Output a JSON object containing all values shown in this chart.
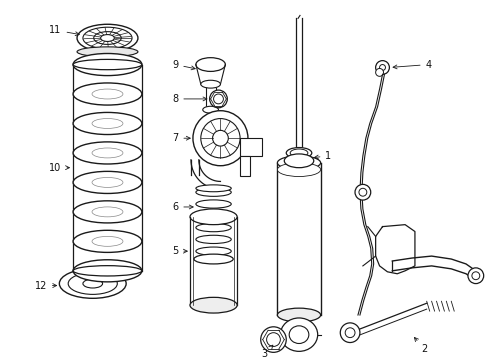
{
  "background_color": "#ffffff",
  "line_color": "#1a1a1a",
  "label_color": "#111111",
  "fig_width": 4.9,
  "fig_height": 3.6,
  "dpi": 100
}
